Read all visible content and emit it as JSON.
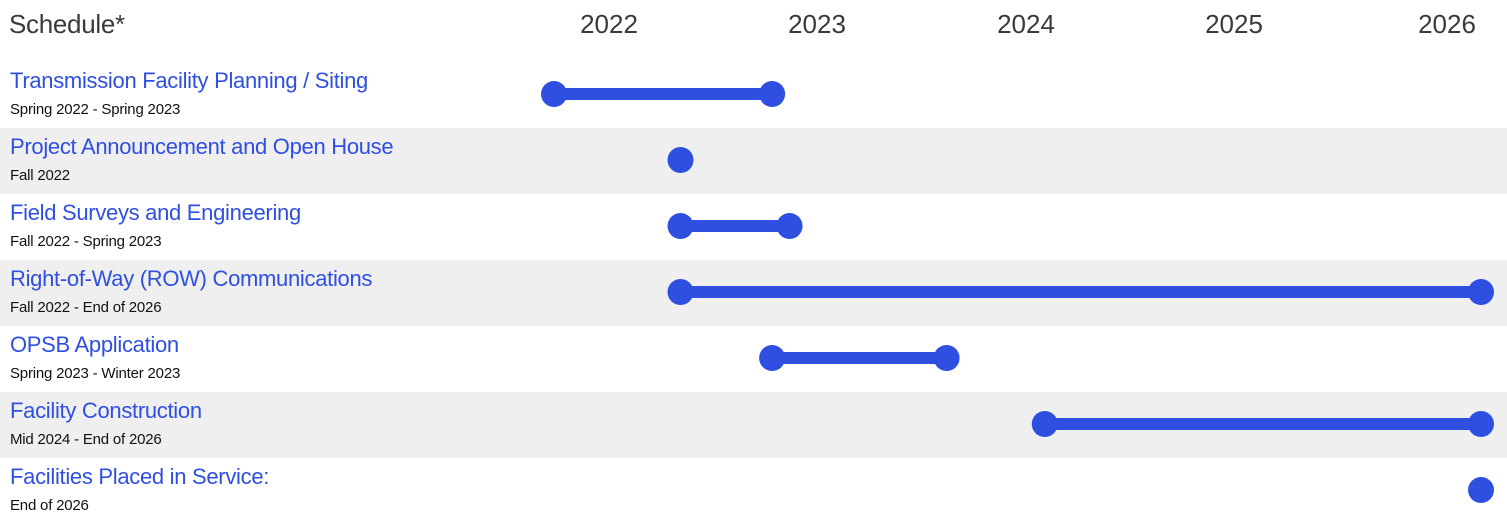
{
  "header": {
    "title": "Schedule*"
  },
  "colors": {
    "accent": "#2e4fe0",
    "title_text": "#2f4fe0",
    "shade": "#efefef"
  },
  "chart_data": {
    "type": "gantt",
    "x_axis": {
      "ticks": [
        "2022",
        "2023",
        "2024",
        "2025",
        "2026"
      ],
      "range": [
        2021.75,
        2026.0
      ]
    },
    "rows": [
      {
        "title": "Transmission Facility Planning / Siting",
        "dates": "Spring 2022 - Spring 2023",
        "start": 2021.75,
        "end": 2022.75,
        "shaded": false
      },
      {
        "title": "Project Announcement and Open House",
        "dates": "Fall 2022",
        "start": 2022.33,
        "end": 2022.33,
        "shaded": true
      },
      {
        "title": "Field Surveys and Engineering",
        "dates": "Fall 2022 - Spring 2023",
        "start": 2022.33,
        "end": 2022.83,
        "shaded": false
      },
      {
        "title": "Right-of-Way (ROW) Communications",
        "dates": "Fall 2022 - End of 2026",
        "start": 2022.33,
        "end": 2026.0,
        "shaded": true
      },
      {
        "title": "OPSB Application",
        "dates": "Spring 2023 - Winter 2023",
        "start": 2022.75,
        "end": 2023.55,
        "shaded": false
      },
      {
        "title": "Facility Construction",
        "dates": "Mid 2024 - End of 2026",
        "start": 2024.0,
        "end": 2026.0,
        "shaded": true
      },
      {
        "title": "Facilities Placed in Service:",
        "dates": "End of 2026",
        "start": 2026.0,
        "end": 2026.0,
        "shaded": false
      }
    ]
  }
}
